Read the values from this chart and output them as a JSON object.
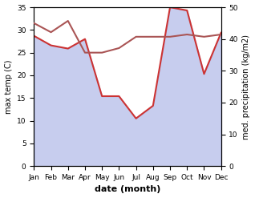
{
  "months": [
    "Jan",
    "Feb",
    "Mar",
    "Apr",
    "May",
    "Jun",
    "Jul",
    "Aug",
    "Sep",
    "Oct",
    "Nov",
    "Dec"
  ],
  "temp": [
    31.5,
    29.5,
    32.0,
    25.0,
    25.0,
    26.0,
    28.5,
    28.5,
    28.5,
    29.0,
    28.5,
    29.0
  ],
  "precip": [
    41,
    38,
    37,
    40,
    22,
    22,
    15,
    19,
    50,
    49,
    29,
    42
  ],
  "temp_color": "#aa5555",
  "precip_color": "#cc3333",
  "fill_color": "#b0b8e8",
  "fill_alpha": 0.7,
  "xlabel": "date (month)",
  "ylabel_left": "max temp (C)",
  "ylabel_right": "med. precipitation (kg/m2)",
  "ylim_left": [
    0,
    35
  ],
  "ylim_right": [
    0,
    50
  ],
  "yticks_left": [
    0,
    5,
    10,
    15,
    20,
    25,
    30,
    35
  ],
  "yticks_right": [
    0,
    10,
    20,
    30,
    40,
    50
  ],
  "bg_color": "#ffffff"
}
